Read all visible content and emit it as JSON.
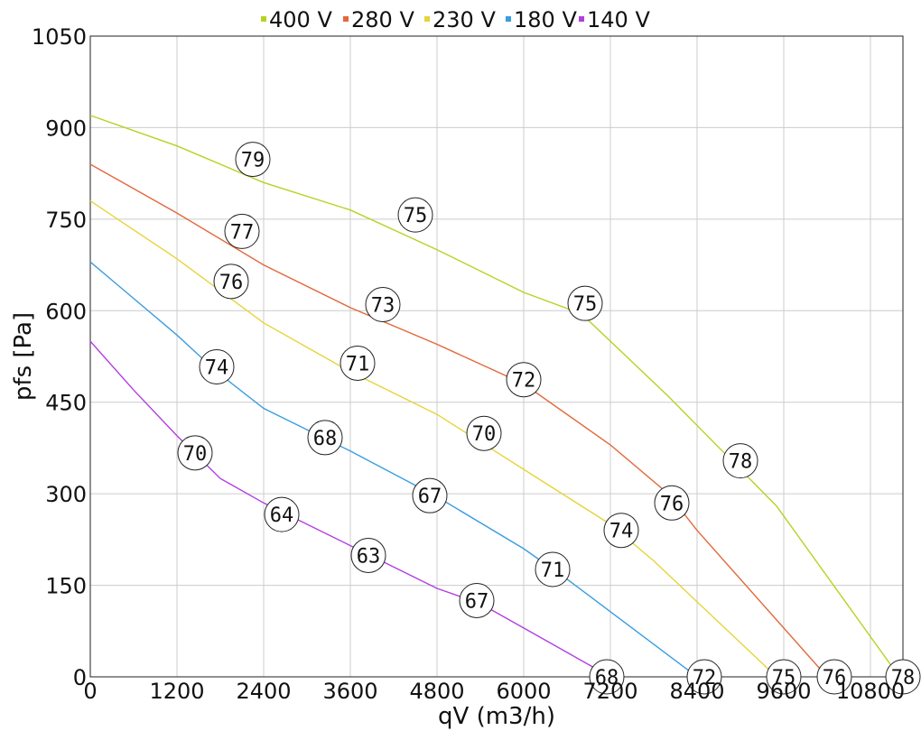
{
  "chart_data": {
    "type": "line",
    "title": "",
    "xlabel": "qV (m3/h)",
    "ylabel": "pfs [Pa]",
    "xlim": [
      0,
      11250
    ],
    "ylim": [
      0,
      1050
    ],
    "xticks": [
      0,
      1200,
      2400,
      3600,
      4800,
      6000,
      7200,
      8400,
      9600,
      10800
    ],
    "yticks": [
      0,
      150,
      300,
      450,
      600,
      750,
      900,
      1050
    ],
    "grid": true,
    "legend_position": "top",
    "series": [
      {
        "name": "400 V",
        "color": "#b5d321",
        "points": [
          [
            0,
            920
          ],
          [
            1200,
            870
          ],
          [
            2400,
            810
          ],
          [
            3600,
            765
          ],
          [
            4800,
            700
          ],
          [
            6000,
            630
          ],
          [
            6800,
            595
          ],
          [
            8000,
            460
          ],
          [
            9500,
            280
          ],
          [
            11200,
            0
          ]
        ],
        "labels": [
          {
            "x": 2250,
            "y": 848,
            "text": "79"
          },
          {
            "x": 4500,
            "y": 757,
            "text": "75"
          },
          {
            "x": 6850,
            "y": 612,
            "text": "75"
          },
          {
            "x": 9000,
            "y": 354,
            "text": "78"
          },
          {
            "x": 11250,
            "y": 0,
            "text": "78"
          }
        ]
      },
      {
        "name": "280 V",
        "color": "#e3683a",
        "points": [
          [
            0,
            840
          ],
          [
            1200,
            760
          ],
          [
            2400,
            675
          ],
          [
            3600,
            605
          ],
          [
            4800,
            545
          ],
          [
            6000,
            480
          ],
          [
            7200,
            380
          ],
          [
            8000,
            300
          ],
          [
            8400,
            240
          ],
          [
            10200,
            0
          ]
        ],
        "labels": [
          {
            "x": 2100,
            "y": 730,
            "text": "77"
          },
          {
            "x": 4050,
            "y": 610,
            "text": "73"
          },
          {
            "x": 6000,
            "y": 487,
            "text": "72"
          },
          {
            "x": 8050,
            "y": 285,
            "text": "76"
          },
          {
            "x": 10300,
            "y": 0,
            "text": "76"
          }
        ]
      },
      {
        "name": "230 V",
        "color": "#e6d43a",
        "points": [
          [
            0,
            780
          ],
          [
            1200,
            685
          ],
          [
            2400,
            580
          ],
          [
            3600,
            500
          ],
          [
            4800,
            430
          ],
          [
            6000,
            340
          ],
          [
            7200,
            250
          ],
          [
            7800,
            190
          ],
          [
            9500,
            0
          ]
        ],
        "labels": [
          {
            "x": 1950,
            "y": 648,
            "text": "76"
          },
          {
            "x": 3700,
            "y": 514,
            "text": "71"
          },
          {
            "x": 5450,
            "y": 399,
            "text": "70"
          },
          {
            "x": 7350,
            "y": 240,
            "text": "74"
          },
          {
            "x": 9600,
            "y": 0,
            "text": "75"
          }
        ]
      },
      {
        "name": "180 V",
        "color": "#3a9de0",
        "points": [
          [
            0,
            680
          ],
          [
            1200,
            560
          ],
          [
            1750,
            500
          ],
          [
            2400,
            440
          ],
          [
            3600,
            370
          ],
          [
            4800,
            295
          ],
          [
            6000,
            210
          ],
          [
            6600,
            160
          ],
          [
            8400,
            0
          ]
        ],
        "labels": [
          {
            "x": 1750,
            "y": 508,
            "text": "74"
          },
          {
            "x": 3250,
            "y": 392,
            "text": "68"
          },
          {
            "x": 4700,
            "y": 297,
            "text": "67"
          },
          {
            "x": 6400,
            "y": 176,
            "text": "71"
          },
          {
            "x": 8500,
            "y": 0,
            "text": "72"
          }
        ]
      },
      {
        "name": "140 V",
        "color": "#b23ee0",
        "points": [
          [
            0,
            550
          ],
          [
            600,
            470
          ],
          [
            1200,
            395
          ],
          [
            1800,
            325
          ],
          [
            2400,
            285
          ],
          [
            3600,
            215
          ],
          [
            4800,
            145
          ],
          [
            5400,
            120
          ],
          [
            6000,
            80
          ],
          [
            7200,
            0
          ]
        ],
        "labels": [
          {
            "x": 1450,
            "y": 367,
            "text": "70"
          },
          {
            "x": 2650,
            "y": 266,
            "text": "64"
          },
          {
            "x": 3850,
            "y": 199,
            "text": "63"
          },
          {
            "x": 5350,
            "y": 125,
            "text": "67"
          },
          {
            "x": 7150,
            "y": 0,
            "text": "68"
          }
        ]
      }
    ]
  }
}
